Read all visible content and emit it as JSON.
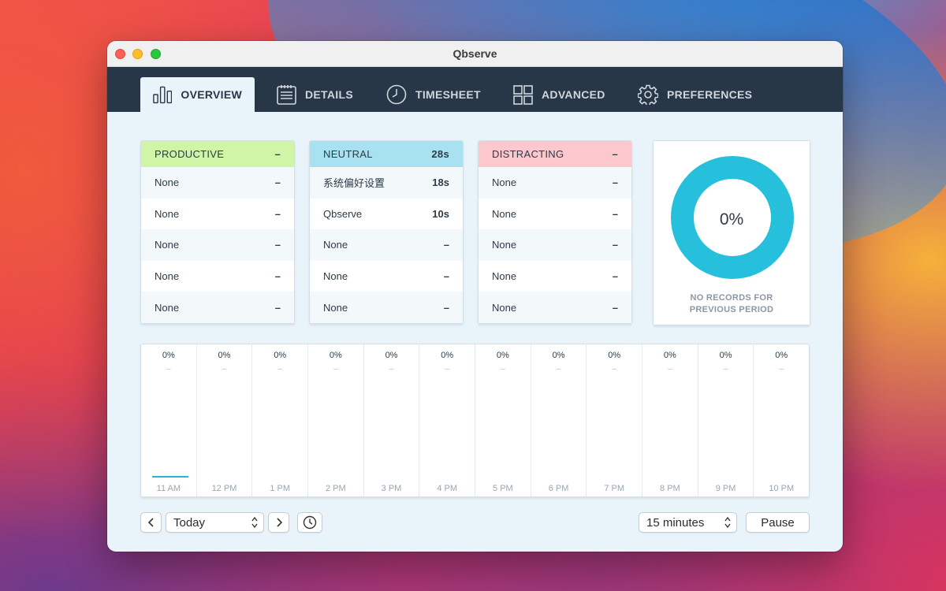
{
  "window": {
    "title": "Qbserve"
  },
  "nav": {
    "tabs": [
      {
        "label": "OVERVIEW",
        "icon": "bar-chart-icon",
        "active": true
      },
      {
        "label": "DETAILS",
        "icon": "notepad-icon",
        "active": false
      },
      {
        "label": "TIMESHEET",
        "icon": "clock-icon",
        "active": false
      },
      {
        "label": "ADVANCED",
        "icon": "grid-icon",
        "active": false
      },
      {
        "label": "PREFERENCES",
        "icon": "gear-icon",
        "active": false
      }
    ]
  },
  "categories": {
    "productive": {
      "title": "PRODUCTIVE",
      "total": "–",
      "color": "#d0f5a6",
      "rows": [
        {
          "name": "None",
          "value": "–"
        },
        {
          "name": "None",
          "value": "–"
        },
        {
          "name": "None",
          "value": "–"
        },
        {
          "name": "None",
          "value": "–"
        },
        {
          "name": "None",
          "value": "–"
        }
      ]
    },
    "neutral": {
      "title": "NEUTRAL",
      "total": "28s",
      "color": "#a8e2f0",
      "rows": [
        {
          "name": "系统偏好设置",
          "value": "18s"
        },
        {
          "name": "Qbserve",
          "value": "10s"
        },
        {
          "name": "None",
          "value": "–"
        },
        {
          "name": "None",
          "value": "–"
        },
        {
          "name": "None",
          "value": "–"
        }
      ]
    },
    "distracting": {
      "title": "DISTRACTING",
      "total": "–",
      "color": "#fdc7ce",
      "rows": [
        {
          "name": "None",
          "value": "–"
        },
        {
          "name": "None",
          "value": "–"
        },
        {
          "name": "None",
          "value": "–"
        },
        {
          "name": "None",
          "value": "–"
        },
        {
          "name": "None",
          "value": "–"
        }
      ]
    }
  },
  "donut": {
    "percent_label": "0%",
    "percent_value": 0,
    "caption_line1": "NO RECORDS FOR",
    "caption_line2": "PREVIOUS PERIOD",
    "color": "#26c0dc"
  },
  "timeline": {
    "hours": [
      {
        "label": "11 AM",
        "percent": "0%",
        "detail": "–"
      },
      {
        "label": "12 PM",
        "percent": "0%",
        "detail": "–"
      },
      {
        "label": "1 PM",
        "percent": "0%",
        "detail": "–"
      },
      {
        "label": "2 PM",
        "percent": "0%",
        "detail": "–"
      },
      {
        "label": "3 PM",
        "percent": "0%",
        "detail": "–"
      },
      {
        "label": "4 PM",
        "percent": "0%",
        "detail": "–"
      },
      {
        "label": "5 PM",
        "percent": "0%",
        "detail": "–"
      },
      {
        "label": "6 PM",
        "percent": "0%",
        "detail": "–"
      },
      {
        "label": "7 PM",
        "percent": "0%",
        "detail": "–"
      },
      {
        "label": "8 PM",
        "percent": "0%",
        "detail": "–"
      },
      {
        "label": "9 PM",
        "percent": "0%",
        "detail": "–"
      },
      {
        "label": "10 PM",
        "percent": "0%",
        "detail": "–"
      }
    ]
  },
  "footer": {
    "period_select": "Today",
    "interval_select": "15 minutes",
    "pause_label": "Pause"
  }
}
